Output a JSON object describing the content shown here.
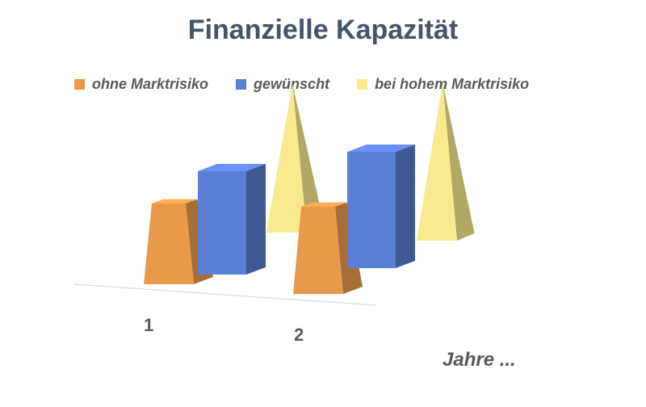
{
  "chart_data": {
    "type": "bar",
    "title": "Finanzielle Kapazität",
    "xlabel": "Jahre ...",
    "ylabel": "",
    "categories": [
      "1",
      "2"
    ],
    "series": [
      {
        "name": "ohne Marktrisiko",
        "values": [
          2.5,
          2.7
        ],
        "color": "#e89a4a",
        "shape": "frustum"
      },
      {
        "name": "gewünscht",
        "values": [
          3.2,
          3.6
        ],
        "color": "#5b7fd4",
        "shape": "box"
      },
      {
        "name": "bei hohem Marktrisiko",
        "values": [
          4.6,
          4.9
        ],
        "color": "#f7e98e",
        "shape": "pyramid"
      }
    ],
    "ylim": [
      0,
      5
    ],
    "grid": false,
    "legend_position": "top"
  }
}
